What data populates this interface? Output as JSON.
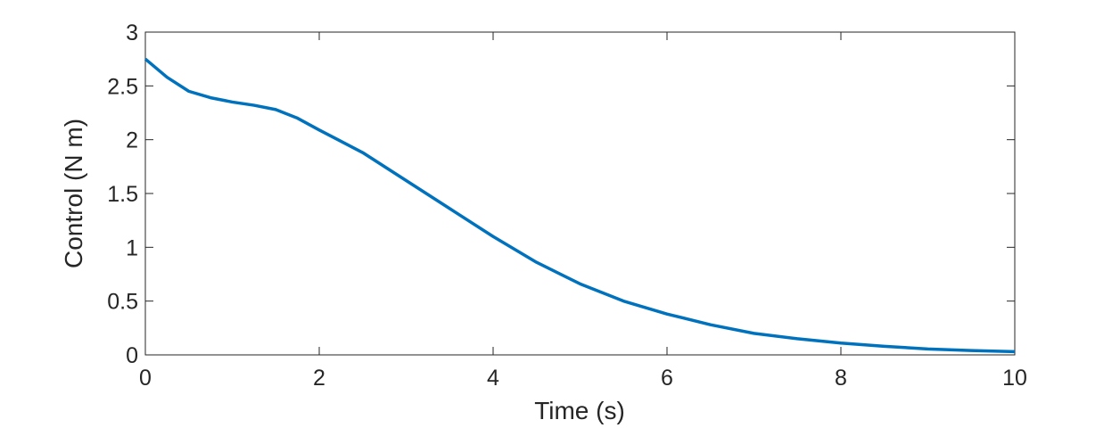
{
  "chart_data": {
    "type": "line",
    "x_label": "Time (s)",
    "y_label": "Control (N m)",
    "x": [
      0,
      0.25,
      0.5,
      0.75,
      1,
      1.25,
      1.5,
      1.75,
      2,
      2.5,
      3,
      3.5,
      4,
      4.5,
      5,
      5.5,
      6,
      6.5,
      7,
      7.5,
      8,
      8.5,
      9,
      9.5,
      10
    ],
    "series": [
      {
        "color": "#0072bd",
        "values": [
          2.75,
          2.58,
          2.45,
          2.39,
          2.35,
          2.32,
          2.28,
          2.2,
          2.09,
          1.88,
          1.62,
          1.36,
          1.1,
          0.86,
          0.66,
          0.5,
          0.38,
          0.28,
          0.2,
          0.15,
          0.11,
          0.08,
          0.055,
          0.04,
          0.03
        ]
      }
    ],
    "xlim": [
      0,
      10
    ],
    "xticks": [
      0,
      2,
      4,
      6,
      8,
      10
    ],
    "ylim": [
      0,
      3
    ],
    "yticks": [
      0,
      0.5,
      1,
      1.5,
      2,
      2.5,
      3
    ],
    "grid": false
  }
}
